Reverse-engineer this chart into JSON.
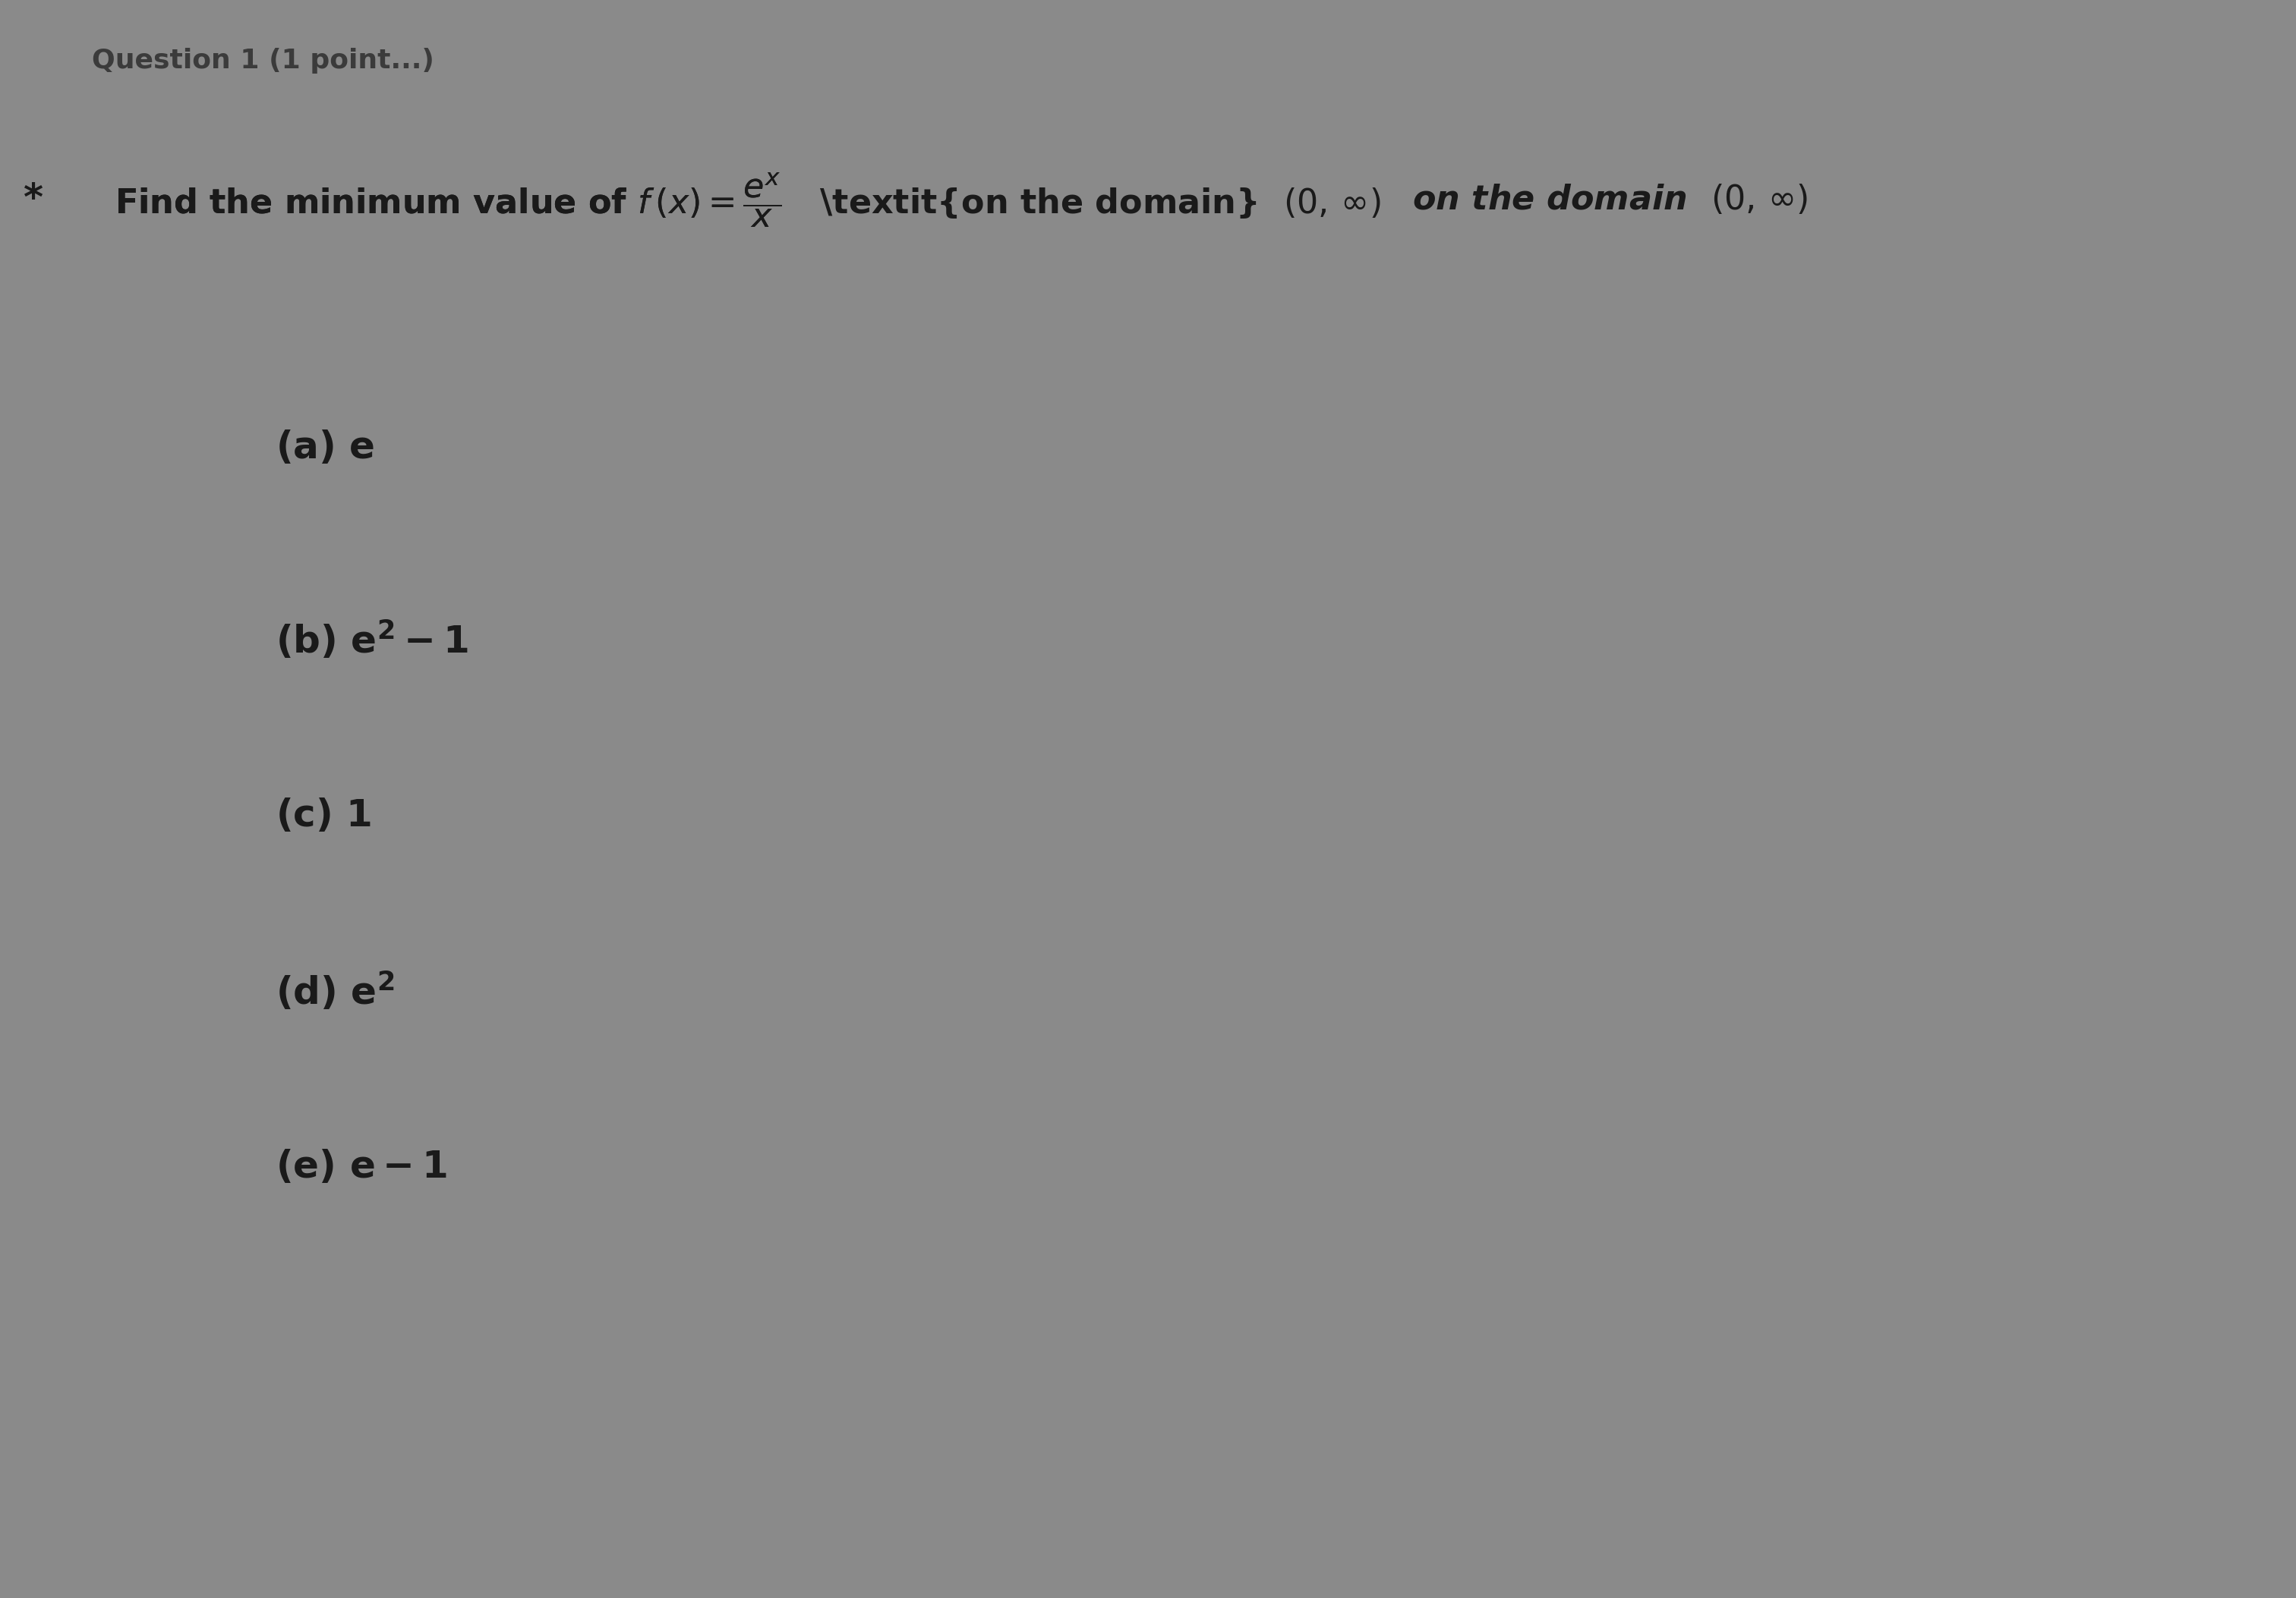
{
  "background_color": "#8a8a8a",
  "title_text": "Find the minimum value of",
  "function_expr": "f(x) = \\frac{e^x}{x}",
  "domain_text": "on the domain",
  "domain_interval": "(0, \\infty)",
  "question_marker": "*",
  "header_partial": "Question 1 (1 point)",
  "options": [
    {
      "label": "(a)",
      "value": "e"
    },
    {
      "label": "(b)",
      "value": "e^{2}-1"
    },
    {
      "label": "(c)",
      "value": "1"
    },
    {
      "label": "(d)",
      "value": "e^{2}"
    },
    {
      "label": "(e)",
      "value": "e-1"
    }
  ],
  "text_color": "#1a1a1a",
  "font_size_main": 32,
  "font_size_options": 36,
  "font_size_header": 26
}
